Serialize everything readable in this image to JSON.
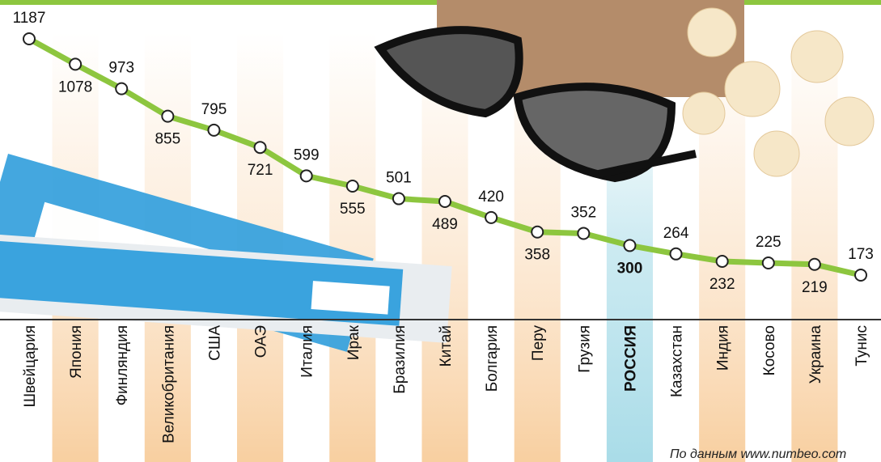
{
  "chart_data": {
    "type": "line",
    "categories": [
      "Швейцария",
      "Япония",
      "Финляндия",
      "Великобритания",
      "США",
      "ОАЭ",
      "Италия",
      "Ирак",
      "Бразилия",
      "Китай",
      "Болгария",
      "Перу",
      "Грузия",
      "РОССИЯ",
      "Казахстан",
      "Индия",
      "Косово",
      "Украина",
      "Тунис"
    ],
    "values": [
      1187,
      1078,
      973,
      855,
      795,
      721,
      599,
      555,
      501,
      489,
      420,
      358,
      352,
      300,
      264,
      232,
      225,
      219,
      173
    ],
    "color": "#8dc63f",
    "highlight": "РОССИЯ",
    "highlight_color": "#a9dce8",
    "stripe_color": "#f8cfa0",
    "source": "По данным www.numbeo.com"
  }
}
